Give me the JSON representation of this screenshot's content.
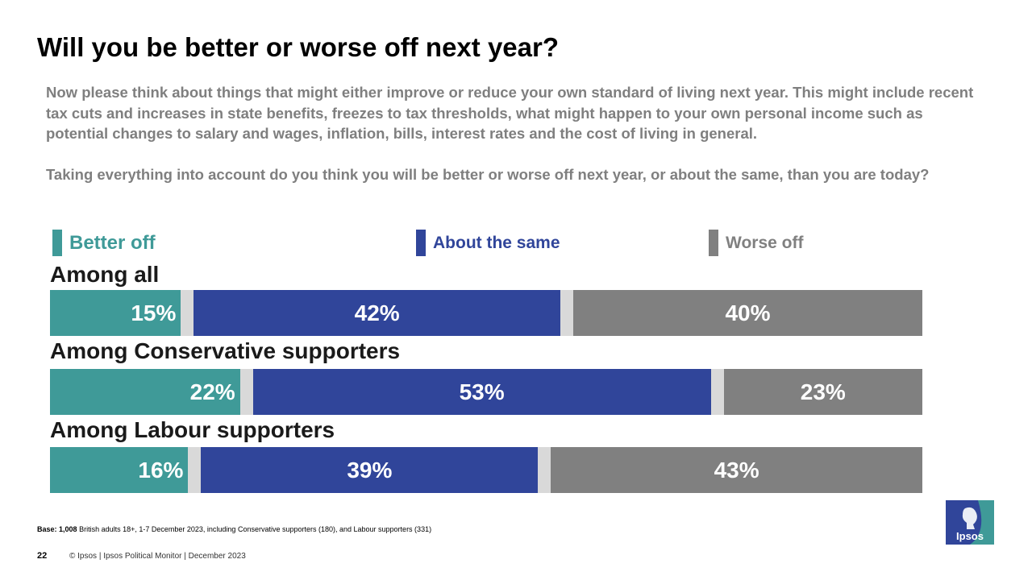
{
  "title": "Will you be better or worse off next year?",
  "question": {
    "para1": "Now please think about things that might either improve or reduce your own standard of living next year.  This might include recent tax cuts and increases in state benefits, freezes to tax thresholds, what might happen to your own personal income such as potential changes to salary and wages, inflation, bills, interest rates and the cost of living in general.",
    "para2": "Taking everything into account do you think you will  be better or worse off next year, or about the same, than you are today?"
  },
  "colors": {
    "better": "#3f9a98",
    "same": "#30459a",
    "worse": "#808080",
    "gap": "#d9d9d9"
  },
  "chart_data": {
    "type": "bar",
    "orientation": "horizontal-stacked-100",
    "legend": [
      "Better off",
      "About the same",
      "Worse off"
    ],
    "categories": [
      "Among all",
      "Among Conservative supporters",
      "Among Labour supporters"
    ],
    "series": [
      {
        "name": "Better off",
        "values": [
          15,
          22,
          16
        ]
      },
      {
        "name": "About the same",
        "values": [
          42,
          53,
          39
        ]
      },
      {
        "name": "Worse off",
        "values": [
          40,
          23,
          43
        ]
      }
    ],
    "value_labels": [
      [
        "15%",
        "42%",
        "40%"
      ],
      [
        "22%",
        "53%",
        "23%"
      ],
      [
        "16%",
        "39%",
        "43%"
      ]
    ],
    "legend_position": "top",
    "unit": "%"
  },
  "base": {
    "label": "Base:",
    "count": "1,008",
    "text": "British adults 18+, 1-7 December 2023, including Conservative supporters (180), and Labour supporters (331)"
  },
  "page_number": "22",
  "footer": "© Ipsos | Ipsos Political Monitor | December 2023",
  "logo": {
    "text": "Ipsos",
    "icon": "ipsos-logo-icon"
  }
}
